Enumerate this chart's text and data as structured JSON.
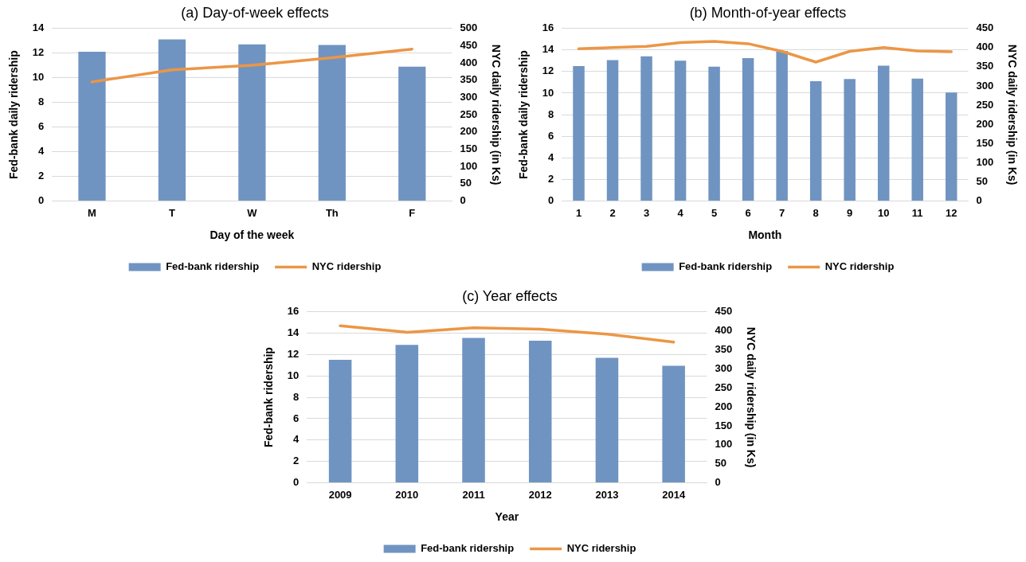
{
  "chart_data": [
    {
      "type": "bar",
      "title": "(a) Day-of-week effects",
      "xlabel": "Day of the week",
      "ylabel": "Fed-bank daily ridership",
      "y2label": "NYC daily ridership (in Ks)",
      "categories": [
        "M",
        "T",
        "W",
        "Th",
        "F"
      ],
      "series": [
        {
          "name": "Fed-bank ridership",
          "color": "#7094c1",
          "values": [
            12.1,
            13.1,
            12.7,
            12.65,
            10.9
          ]
        },
        {
          "name": "NYC ridership",
          "type": "line",
          "axis": "y2",
          "color": "#ec9646",
          "values": [
            345,
            380,
            393,
            415,
            440
          ]
        }
      ],
      "ylim": [
        0,
        14
      ],
      "yticks": [
        0,
        2,
        4,
        6,
        8,
        10,
        12,
        14
      ],
      "y2lim": [
        0,
        500
      ],
      "y2ticks": [
        0,
        50,
        100,
        150,
        200,
        250,
        300,
        350,
        400,
        450,
        500
      ],
      "grid": "y",
      "legend": "bottom"
    },
    {
      "type": "bar",
      "title": "(b) Month-of-year effects",
      "xlabel": "Month",
      "ylabel": "Fed-bank daily ridership",
      "y2label": "NYC daily ridership (in Ks)",
      "categories": [
        "1",
        "2",
        "3",
        "4",
        "5",
        "6",
        "7",
        "8",
        "9",
        "10",
        "11",
        "12"
      ],
      "series": [
        {
          "name": "Fed-bank ridership",
          "color": "#7094c1",
          "values": [
            12.5,
            13.05,
            13.4,
            13.0,
            12.45,
            13.25,
            13.9,
            11.1,
            11.3,
            12.55,
            11.35,
            10.05
          ]
        },
        {
          "name": "NYC ridership",
          "type": "line",
          "axis": "y2",
          "color": "#ec9646",
          "values": [
            397,
            400,
            403,
            413,
            416,
            410,
            390,
            362,
            390,
            400,
            391,
            389
          ]
        }
      ],
      "ylim": [
        0,
        16
      ],
      "yticks": [
        0,
        2,
        4,
        6,
        8,
        10,
        12,
        14,
        16
      ],
      "y2lim": [
        0,
        450
      ],
      "y2ticks": [
        0,
        50,
        100,
        150,
        200,
        250,
        300,
        350,
        400,
        450
      ],
      "grid": "y",
      "legend": "bottom"
    },
    {
      "type": "bar",
      "title": "(c) Year effects",
      "xlabel": "Year",
      "ylabel": "Fed-bank ridership",
      "y2label": "NYC daily ridership (in Ks)",
      "categories": [
        "2009",
        "2010",
        "2011",
        "2012",
        "2013",
        "2014"
      ],
      "series": [
        {
          "name": "Fed-bank ridership",
          "color": "#7094c1",
          "values": [
            11.5,
            12.9,
            13.55,
            13.3,
            11.7,
            10.95
          ]
        },
        {
          "name": "NYC ridership",
          "type": "line",
          "axis": "y2",
          "color": "#ec9646",
          "values": [
            413,
            396,
            408,
            404,
            391,
            370
          ]
        }
      ],
      "ylim": [
        0,
        16
      ],
      "yticks": [
        0,
        2,
        4,
        6,
        8,
        10,
        12,
        14,
        16
      ],
      "y2lim": [
        0,
        450
      ],
      "y2ticks": [
        0,
        50,
        100,
        150,
        200,
        250,
        300,
        350,
        400,
        450
      ],
      "grid": "y",
      "legend": "bottom"
    }
  ]
}
